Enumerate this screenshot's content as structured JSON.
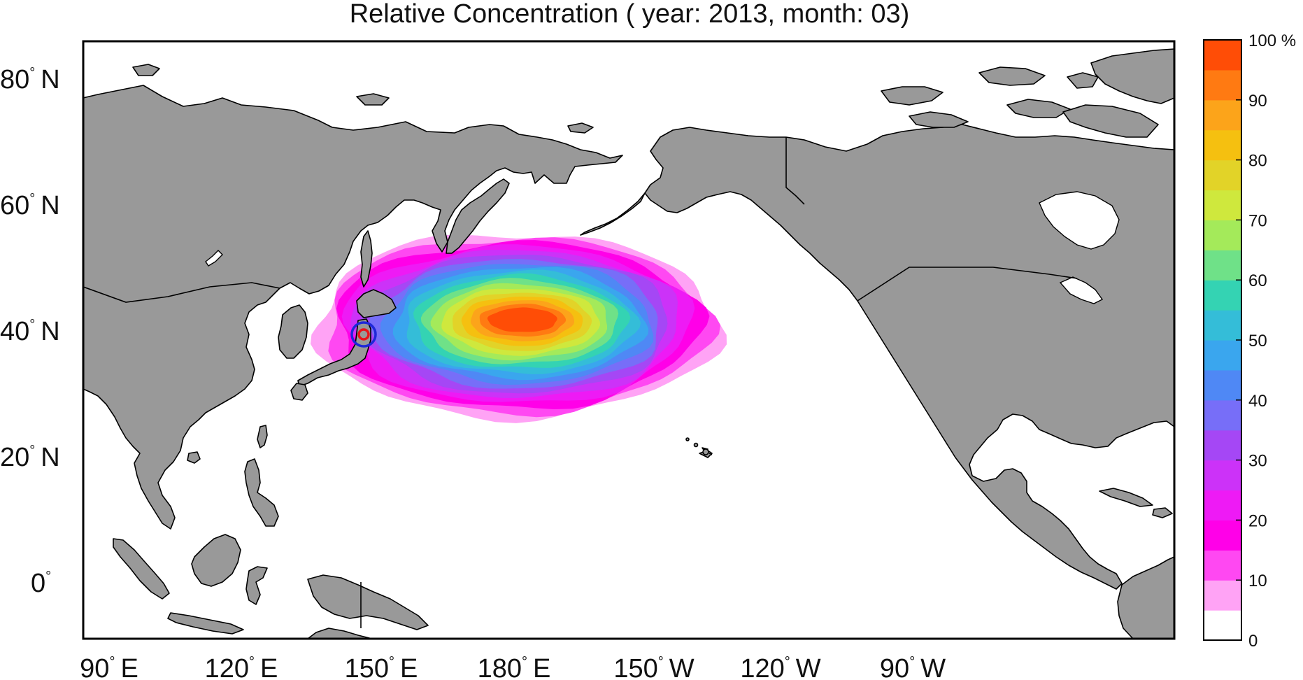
{
  "title": "Relative Concentration ( year: 2013, month: 03)",
  "lon_labels": [
    {
      "deg": "90",
      "hemi": "E"
    },
    {
      "deg": "120",
      "hemi": "E"
    },
    {
      "deg": "150",
      "hemi": "E"
    },
    {
      "deg": "180",
      "hemi": "E"
    },
    {
      "deg": "150",
      "hemi": "W"
    },
    {
      "deg": "120",
      "hemi": "W"
    },
    {
      "deg": "90",
      "hemi": "W"
    }
  ],
  "lat_labels": [
    {
      "deg": "80",
      "hemi": "N"
    },
    {
      "deg": "60",
      "hemi": "N"
    },
    {
      "deg": "40",
      "hemi": "N"
    },
    {
      "deg": "20",
      "hemi": "N"
    },
    {
      "deg": "0",
      "hemi": ""
    }
  ],
  "colorbar": {
    "ticks": [
      "0",
      "10",
      "20",
      "30",
      "40",
      "50",
      "60",
      "70",
      "80",
      "90",
      "100 %"
    ],
    "colors": [
      "#ffffff",
      "#ffa3f5",
      "#ff48f2",
      "#ff00e8",
      "#ee1af5",
      "#cc32f8",
      "#a547f5",
      "#776ef8",
      "#4f88f5",
      "#3aa6ee",
      "#34bdd8",
      "#34d3b3",
      "#6fe188",
      "#a4ea5a",
      "#cfe83d",
      "#e2d328",
      "#f5c010",
      "#fca41a",
      "#ff7a12",
      "#ff4d06"
    ]
  },
  "plume": {
    "levels_percent": [
      5,
      10,
      15,
      20,
      25,
      30,
      35,
      40,
      45,
      50,
      55,
      60,
      65,
      70,
      75,
      80,
      85,
      90,
      95
    ]
  },
  "markers": {
    "source_outer_color": "#1f28d8",
    "source_inner_color": "#e8141a"
  }
}
